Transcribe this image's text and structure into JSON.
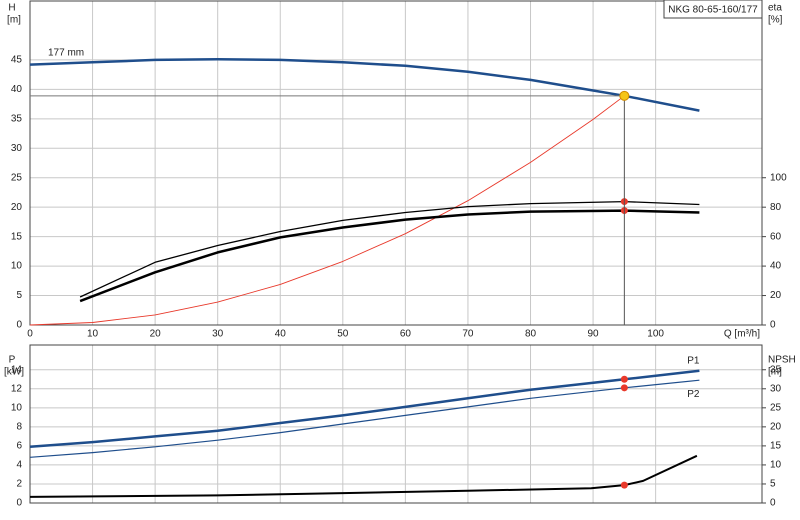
{
  "chart_data": [
    {
      "type": "line",
      "title": "NKG 80-65-160/177",
      "xlabel": "Q [m³/h]",
      "ylabel": "H",
      "yunit": "[m]",
      "y2label": "eta",
      "y2unit": "[%]",
      "xlim": [
        0,
        117
      ],
      "xticks": [
        0,
        10,
        20,
        30,
        40,
        50,
        60,
        70,
        80,
        90,
        100
      ],
      "xtick_labels": true,
      "ylim": [
        0,
        55
      ],
      "yticks": [
        0,
        5,
        10,
        15,
        20,
        25,
        30,
        35,
        40,
        45
      ],
      "y2lim": [
        0,
        220
      ],
      "y2ticks": [
        0,
        20,
        40,
        60,
        80,
        100
      ],
      "grid": true,
      "series": [
        {
          "name": "177 mm",
          "label_position": "start",
          "color": "#1f4e8c",
          "width": 2.5,
          "x": [
            0,
            10,
            20,
            30,
            40,
            50,
            60,
            70,
            80,
            90,
            95,
            107
          ],
          "values": [
            44.2,
            44.6,
            45,
            45.1,
            45,
            44.6,
            44,
            43,
            41.6,
            39.8,
            38.9,
            36.4
          ]
        },
        {
          "color": "#e8392b",
          "width": 0.9,
          "x": [
            0,
            10,
            20,
            30,
            40,
            50,
            60,
            70,
            80,
            90,
            95
          ],
          "values": [
            0,
            0.43,
            1.72,
            3.88,
            6.9,
            10.8,
            15.5,
            21.1,
            27.6,
            34.9,
            38.9
          ]
        },
        {
          "color": "#000000",
          "width": 1.3,
          "axis": "y2",
          "x": [
            8,
            20,
            30,
            40,
            50,
            60,
            70,
            80,
            95,
            107
          ],
          "values": [
            19,
            42.6,
            54,
            63.5,
            71,
            76.4,
            80.4,
            82.4,
            83.8,
            81.8
          ]
        },
        {
          "color": "#000000",
          "width": 2.5,
          "axis": "y2",
          "x": [
            8,
            20,
            30,
            40,
            50,
            60,
            70,
            80,
            95,
            107
          ],
          "values": [
            16.2,
            35.8,
            49.3,
            59.5,
            66.2,
            71.6,
            75,
            77,
            77.7,
            76.4
          ]
        },
        {
          "marker": "dot",
          "color": "#e8392b",
          "axis": "y2",
          "x": [
            95,
            95
          ],
          "values": [
            83.8,
            77.7
          ]
        },
        {
          "marker": "dot",
          "color": "#f5c518",
          "guides": true,
          "x": [
            95
          ],
          "values": [
            38.9
          ]
        }
      ]
    },
    {
      "type": "line",
      "ylabel": "P",
      "yunit": "[kW]",
      "y2label": "NPSH",
      "y2unit": "[m]",
      "xlim": [
        0,
        117
      ],
      "xticks": [
        0,
        10,
        20,
        30,
        40,
        50,
        60,
        70,
        80,
        90,
        100
      ],
      "xtick_labels": false,
      "ylim": [
        0,
        16.6
      ],
      "yticks": [
        0,
        2,
        4,
        6,
        8,
        10,
        12,
        14
      ],
      "y2lim": [
        0,
        41.5
      ],
      "y2ticks": [
        0,
        5,
        10,
        15,
        20,
        25,
        30,
        35
      ],
      "grid": true,
      "series": [
        {
          "name": "P1",
          "label_position": "end",
          "color": "#1f4e8c",
          "width": 2.5,
          "x": [
            0,
            10,
            20,
            30,
            40,
            50,
            60,
            70,
            80,
            95,
            107
          ],
          "values": [
            5.9,
            6.4,
            7.0,
            7.6,
            8.4,
            9.2,
            10.1,
            11.0,
            11.9,
            13.0,
            13.9
          ]
        },
        {
          "name": "P2",
          "label_position": "end",
          "color": "#1f4e8c",
          "width": 1.2,
          "x": [
            0,
            10,
            20,
            30,
            40,
            50,
            60,
            70,
            80,
            95,
            107
          ],
          "values": [
            4.8,
            5.3,
            5.9,
            6.6,
            7.4,
            8.3,
            9.2,
            10.1,
            11.0,
            12.1,
            12.9
          ]
        },
        {
          "color": "#000000",
          "width": 2,
          "axis": "y2",
          "x": [
            0,
            30,
            50,
            70,
            89.7,
            95,
            98,
            106.6
          ],
          "values": [
            1.6,
            2.0,
            2.6,
            3.2,
            3.9,
            4.7,
            5.8,
            12.4
          ]
        },
        {
          "marker": "dot",
          "color": "#e8392b",
          "x": [
            95,
            95
          ],
          "values": [
            13.0,
            12.1
          ]
        },
        {
          "marker": "dot",
          "color": "#e8392b",
          "axis": "y2",
          "x": [
            95
          ],
          "values": [
            4.7
          ]
        }
      ]
    }
  ]
}
